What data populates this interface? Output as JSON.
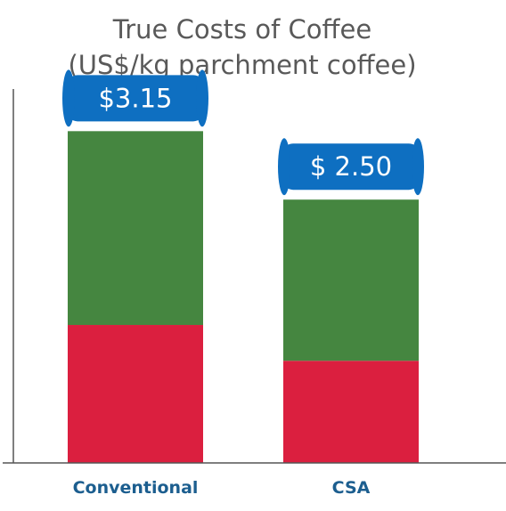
{
  "chart_data": {
    "type": "bar",
    "stacked": true,
    "title": "True Costs of Coffee",
    "subtitle": "(US$/kg parchment coffee)",
    "categories": [
      "Conventional",
      "CSA"
    ],
    "series": [
      {
        "values": [
          1.31,
          0.97
        ]
      },
      {
        "values": [
          1.84,
          1.53
        ]
      }
    ],
    "totals": [
      3.15,
      2.5
    ],
    "total_labels": [
      "$3.15",
      "$ 2.50"
    ],
    "ylim": [
      0,
      3.55
    ],
    "grid": false,
    "legend": "none",
    "colors": {
      "segments": [
        "#db1f3f",
        "#458640"
      ],
      "total_badge": "#0e6fc1",
      "category_label": "#1c5e8f",
      "axis": "#555555",
      "title": "#595959"
    }
  }
}
